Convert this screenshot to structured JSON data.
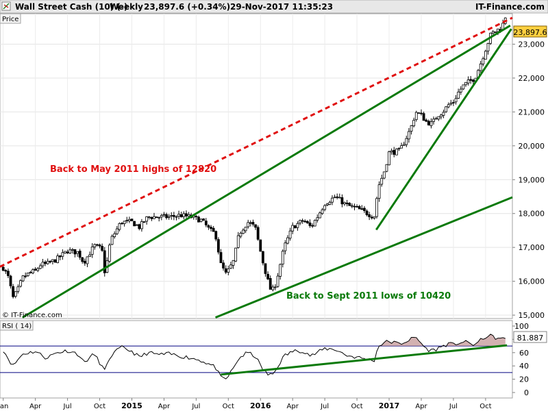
{
  "header": {
    "title": "Wall Street Cash (10) (-)",
    "period": "Weekly",
    "price_change": "23,897.6 (+0.34%)",
    "datetime": "29-Nov-2017 11:35:23",
    "brand": "IT-Finance.com"
  },
  "price_panel": {
    "label": "Price",
    "copyright": "© IT-Finance.com",
    "last_price": "23,897.6",
    "y_ticks": [
      {
        "value": 15000,
        "label": "15,000"
      },
      {
        "value": 16000,
        "label": "16,000"
      },
      {
        "value": 17000,
        "label": "17,000"
      },
      {
        "value": 18000,
        "label": "18,000"
      },
      {
        "value": 19000,
        "label": "19,000"
      },
      {
        "value": 20000,
        "label": "20,000"
      },
      {
        "value": 21000,
        "label": "21,000"
      },
      {
        "value": 22000,
        "label": "22,000"
      },
      {
        "value": 23000,
        "label": "23,000"
      }
    ],
    "annotation_high": "Back to May 2011 highs of 12820",
    "annotation_low": "Back to Sept 2011 lows of 10420"
  },
  "rsi_panel": {
    "label": "RSI ( 14)",
    "last_value": "81.887",
    "overbought": 70,
    "oversold": 30,
    "y_ticks": [
      {
        "value": 100,
        "label": "100"
      },
      {
        "value": 80,
        "label": "80"
      },
      {
        "value": 60,
        "label": "60"
      },
      {
        "value": 40,
        "label": "40"
      },
      {
        "value": 20,
        "label": "20"
      },
      {
        "value": 0,
        "label": "0"
      }
    ]
  },
  "x_ticks": [
    {
      "month": 0.0,
      "label": "Jan",
      "bold": false
    },
    {
      "month": 3.0,
      "label": "Apr",
      "bold": false
    },
    {
      "month": 6.0,
      "label": "Jul",
      "bold": false
    },
    {
      "month": 9.0,
      "label": "Oct",
      "bold": false
    },
    {
      "month": 12.0,
      "label": "2015",
      "bold": true
    },
    {
      "month": 15.0,
      "label": "Apr",
      "bold": false
    },
    {
      "month": 18.0,
      "label": "Jul",
      "bold": false
    },
    {
      "month": 21.0,
      "label": "Oct",
      "bold": false
    },
    {
      "month": 24.0,
      "label": "2016",
      "bold": true
    },
    {
      "month": 27.0,
      "label": "Apr",
      "bold": false
    },
    {
      "month": 30.0,
      "label": "Jul",
      "bold": false
    },
    {
      "month": 33.0,
      "label": "Oct",
      "bold": false
    },
    {
      "month": 36.0,
      "label": "2017",
      "bold": true
    },
    {
      "month": 39.0,
      "label": "Apr",
      "bold": false
    },
    {
      "month": 42.0,
      "label": "Jul",
      "bold": false
    },
    {
      "month": 45.0,
      "label": "Oct",
      "bold": false
    }
  ],
  "colors": {
    "up": "#ffffff",
    "down": "#000000",
    "resistance": "#e01010",
    "trend": "#0a7a0a",
    "rsi_line": "#000000",
    "rsi_fill": "#c09090",
    "rsi_level": "#000080",
    "last_price_bg": "#ffd040"
  },
  "chart_data": {
    "type": "candlestick",
    "x_unit": "months since Jan 2014",
    "xlim": [
      -0.3,
      47.5
    ],
    "ylim": [
      14900,
      23900
    ],
    "price_waypoints": [
      [
        0.0,
        16400
      ],
      [
        0.5,
        16100
      ],
      [
        0.9,
        15500
      ],
      [
        1.3,
        15700
      ],
      [
        1.8,
        16100
      ],
      [
        2.5,
        16250
      ],
      [
        3.0,
        16300
      ],
      [
        3.5,
        16500
      ],
      [
        4.0,
        16500
      ],
      [
        5.0,
        16650
      ],
      [
        6.0,
        16900
      ],
      [
        7.0,
        16850
      ],
      [
        7.5,
        16550
      ],
      [
        8.5,
        17050
      ],
      [
        9.2,
        16950
      ],
      [
        9.5,
        16200
      ],
      [
        10.0,
        17200
      ],
      [
        11.0,
        17750
      ],
      [
        12.0,
        17750
      ],
      [
        12.7,
        17600
      ],
      [
        13.5,
        17900
      ],
      [
        14.5,
        17900
      ],
      [
        15.5,
        17900
      ],
      [
        16.5,
        17950
      ],
      [
        17.5,
        17900
      ],
      [
        18.5,
        17800
      ],
      [
        19.3,
        17500
      ],
      [
        19.8,
        17400
      ],
      [
        20.3,
        16500
      ],
      [
        20.8,
        16200
      ],
      [
        21.5,
        16600
      ],
      [
        22.0,
        17400
      ],
      [
        22.8,
        17750
      ],
      [
        23.5,
        17600
      ],
      [
        24.2,
        16600
      ],
      [
        24.7,
        16000
      ],
      [
        25.0,
        15700
      ],
      [
        25.3,
        15800
      ],
      [
        25.7,
        16300
      ],
      [
        26.2,
        17000
      ],
      [
        27.0,
        17600
      ],
      [
        28.0,
        17800
      ],
      [
        28.7,
        17600
      ],
      [
        29.3,
        17900
      ],
      [
        30.0,
        18300
      ],
      [
        31.0,
        18500
      ],
      [
        32.0,
        18250
      ],
      [
        33.0,
        18150
      ],
      [
        34.0,
        18000
      ],
      [
        34.6,
        17900
      ],
      [
        35.0,
        18800
      ],
      [
        35.5,
        19200
      ],
      [
        36.0,
        19800
      ],
      [
        37.0,
        19850
      ],
      [
        38.0,
        20500
      ],
      [
        38.5,
        21000
      ],
      [
        39.0,
        20900
      ],
      [
        39.5,
        20700
      ],
      [
        40.0,
        20650
      ],
      [
        40.5,
        20900
      ],
      [
        41.0,
        21000
      ],
      [
        41.5,
        21200
      ],
      [
        42.0,
        21300
      ],
      [
        42.5,
        21600
      ],
      [
        43.0,
        21800
      ],
      [
        43.5,
        21900
      ],
      [
        44.0,
        22000
      ],
      [
        44.5,
        22400
      ],
      [
        45.0,
        22850
      ],
      [
        45.5,
        23300
      ],
      [
        46.0,
        23400
      ],
      [
        46.5,
        23500
      ],
      [
        47.0,
        23897.6
      ]
    ],
    "rsi_waypoints": [
      [
        0.0,
        64
      ],
      [
        0.9,
        40
      ],
      [
        1.8,
        58
      ],
      [
        3.0,
        62
      ],
      [
        4.0,
        52
      ],
      [
        5.0,
        60
      ],
      [
        6.0,
        63
      ],
      [
        7.0,
        58
      ],
      [
        7.5,
        45
      ],
      [
        8.5,
        58
      ],
      [
        9.5,
        32
      ],
      [
        10.0,
        55
      ],
      [
        11.0,
        68
      ],
      [
        12.0,
        62
      ],
      [
        12.7,
        53
      ],
      [
        13.5,
        60
      ],
      [
        14.5,
        57
      ],
      [
        15.5,
        58
      ],
      [
        16.5,
        55
      ],
      [
        17.5,
        52
      ],
      [
        18.5,
        48
      ],
      [
        19.3,
        42
      ],
      [
        19.8,
        38
      ],
      [
        20.3,
        22
      ],
      [
        20.8,
        20
      ],
      [
        21.5,
        37
      ],
      [
        22.0,
        52
      ],
      [
        22.8,
        60
      ],
      [
        23.5,
        55
      ],
      [
        24.2,
        35
      ],
      [
        24.7,
        27
      ],
      [
        25.0,
        26
      ],
      [
        25.3,
        30
      ],
      [
        25.7,
        42
      ],
      [
        26.2,
        55
      ],
      [
        27.0,
        62
      ],
      [
        28.0,
        63
      ],
      [
        28.7,
        55
      ],
      [
        29.3,
        60
      ],
      [
        30.0,
        66
      ],
      [
        31.0,
        65
      ],
      [
        32.0,
        56
      ],
      [
        33.0,
        53
      ],
      [
        34.0,
        50
      ],
      [
        34.6,
        48
      ],
      [
        35.0,
        70
      ],
      [
        35.5,
        75
      ],
      [
        36.0,
        77
      ],
      [
        37.0,
        73
      ],
      [
        38.0,
        80
      ],
      [
        38.5,
        83
      ],
      [
        39.0,
        74
      ],
      [
        39.5,
        65
      ],
      [
        40.0,
        63
      ],
      [
        40.5,
        66
      ],
      [
        41.0,
        70
      ],
      [
        41.5,
        73
      ],
      [
        42.0,
        72
      ],
      [
        42.5,
        75
      ],
      [
        43.0,
        76
      ],
      [
        43.5,
        74
      ],
      [
        44.0,
        72
      ],
      [
        44.5,
        78
      ],
      [
        45.0,
        84
      ],
      [
        45.5,
        85
      ],
      [
        46.0,
        82
      ],
      [
        46.5,
        80
      ],
      [
        47.0,
        81.887
      ]
    ],
    "trendlines": [
      {
        "name": "resistance",
        "style": "dashed",
        "color": "#e01010",
        "from": [
          -0.3,
          16430
        ],
        "to": [
          47.5,
          23780
        ]
      },
      {
        "name": "upper-channel",
        "style": "solid",
        "color": "#0a7a0a",
        "from": [
          1.8,
          14930
        ],
        "to": [
          47.3,
          23550
        ]
      },
      {
        "name": "steep-support",
        "style": "solid",
        "color": "#0a7a0a",
        "from": [
          34.8,
          17520
        ],
        "to": [
          47.4,
          23450
        ]
      },
      {
        "name": "long-support",
        "style": "solid",
        "color": "#0a7a0a",
        "from": [
          19.8,
          14930
        ],
        "to": [
          47.5,
          18480
        ]
      }
    ],
    "rsi_trendline": {
      "from": [
        20.3,
        27
      ],
      "to": [
        47.0,
        71
      ]
    }
  }
}
